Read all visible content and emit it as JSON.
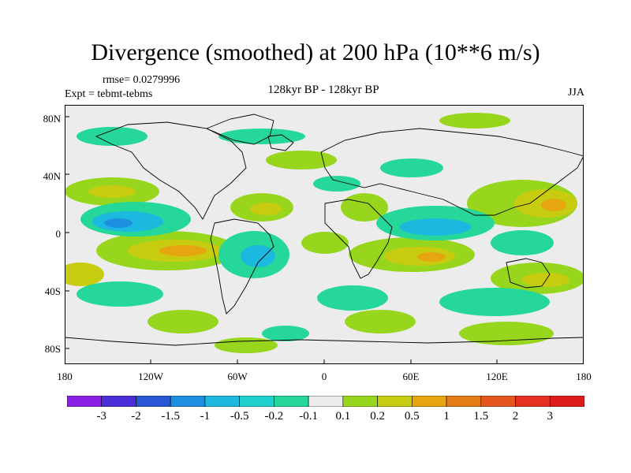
{
  "title": "Divergence (smoothed) at 200 hPa (10**6 m/s)",
  "rmse": "rmse= 0.0279996",
  "experiment": "Expt = tebmt-tebms",
  "period": "128kyr BP - 128kyr BP",
  "season": "JJA",
  "lat_labels": [
    "80N",
    "40N",
    "0",
    "40S",
    "80S"
  ],
  "lon_labels": [
    "180",
    "120W",
    "60W",
    "0",
    "60E",
    "120E",
    "180"
  ],
  "colorbar": {
    "labels": [
      "-3",
      "-2",
      "-1.5",
      "-1",
      "-0.5",
      "-0.2",
      "-0.1",
      "0.1",
      "0.2",
      "0.5",
      "1",
      "1.5",
      "2",
      "3"
    ],
    "colors": [
      "#8c1fe6",
      "#4a2fd9",
      "#2a56d6",
      "#1d8fe0",
      "#1cb8e0",
      "#20d0cc",
      "#26d79a",
      "#ececec",
      "#98d61e",
      "#c8cc10",
      "#e6a60f",
      "#e57d16",
      "#e5561e",
      "#e5301f",
      "#e01b1b"
    ]
  }
}
